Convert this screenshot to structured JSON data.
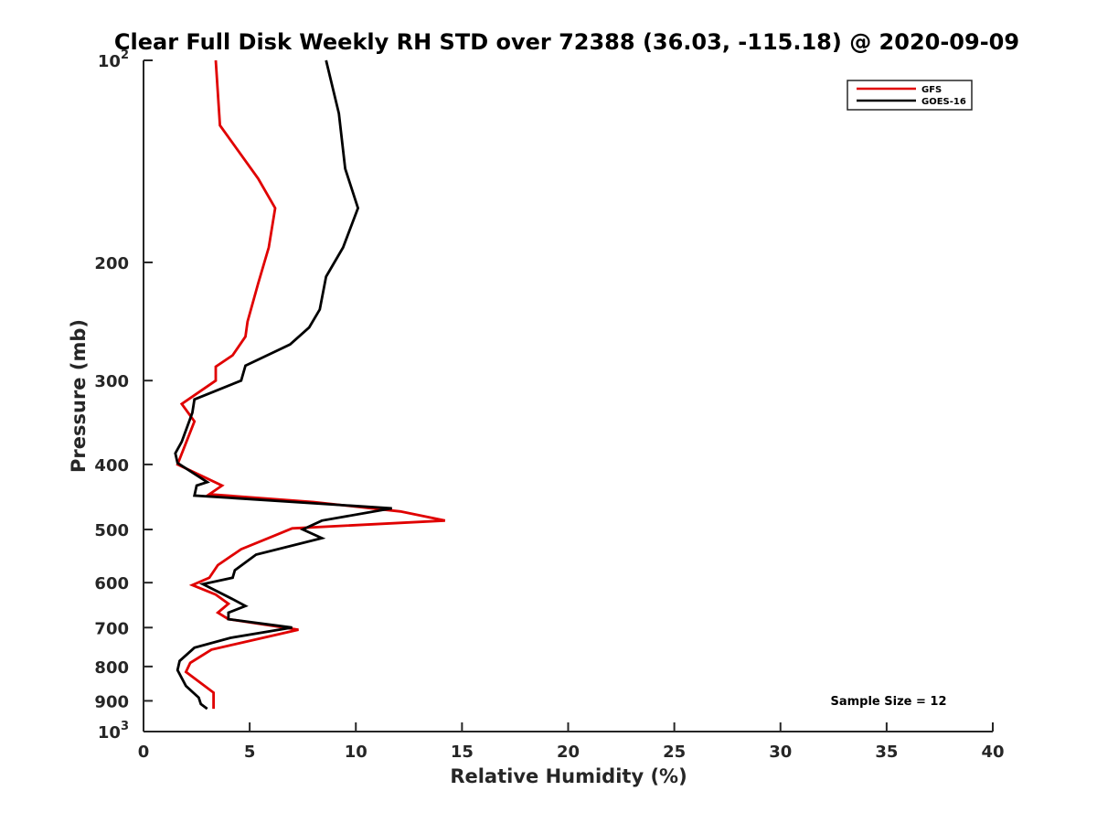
{
  "chart_data": {
    "type": "line",
    "title": "Clear Full Disk Weekly RH STD over 72388 (36.03, -115.18) @ 2020-09-09",
    "xlabel": "Relative Humidity (%)",
    "ylabel": "Pressure (mb)",
    "xlim": [
      0,
      40
    ],
    "ylim": [
      100,
      1000
    ],
    "y_scale": "log",
    "y_reversed": true,
    "x_ticks": [
      "0",
      "5",
      "10",
      "15",
      "20",
      "25",
      "30",
      "35",
      "40"
    ],
    "y_ticks": [
      {
        "value": 100,
        "base": "10",
        "exp": "2"
      },
      {
        "value": 200,
        "label": "200"
      },
      {
        "value": 300,
        "label": "300"
      },
      {
        "value": 400,
        "label": "400"
      },
      {
        "value": 500,
        "label": "500"
      },
      {
        "value": 600,
        "label": "600"
      },
      {
        "value": 700,
        "label": "700"
      },
      {
        "value": 800,
        "label": "800"
      },
      {
        "value": 900,
        "label": "900"
      },
      {
        "value": 1000,
        "base": "10",
        "exp": "3"
      }
    ],
    "grid": false,
    "legend_position": "top-right",
    "annotation": "Sample Size = 12",
    "series": [
      {
        "name": "GFS",
        "color": "#e00000",
        "points": [
          [
            3.4,
            100
          ],
          [
            3.6,
            125
          ],
          [
            5.4,
            150
          ],
          [
            6.2,
            166
          ],
          [
            5.9,
            190
          ],
          [
            5.4,
            215
          ],
          [
            4.9,
            245
          ],
          [
            4.8,
            258
          ],
          [
            4.2,
            275
          ],
          [
            3.4,
            286
          ],
          [
            3.4,
            300
          ],
          [
            1.8,
            325
          ],
          [
            2.4,
            345
          ],
          [
            1.6,
            400
          ],
          [
            3.7,
            430
          ],
          [
            3.1,
            443
          ],
          [
            8.0,
            455
          ],
          [
            12.1,
            470
          ],
          [
            14.2,
            485
          ],
          [
            7.0,
            498
          ],
          [
            6.2,
            510
          ],
          [
            4.6,
            535
          ],
          [
            3.5,
            565
          ],
          [
            3.1,
            590
          ],
          [
            2.3,
            605
          ],
          [
            3.4,
            625
          ],
          [
            4.0,
            645
          ],
          [
            3.5,
            665
          ],
          [
            4.0,
            680
          ],
          [
            7.3,
            705
          ],
          [
            3.2,
            755
          ],
          [
            2.2,
            790
          ],
          [
            2.0,
            815
          ],
          [
            3.3,
            875
          ],
          [
            3.3,
            900
          ],
          [
            3.3,
            925
          ]
        ]
      },
      {
        "name": "GOES-16",
        "color": "#000000",
        "points": [
          [
            8.6,
            100
          ],
          [
            9.2,
            120
          ],
          [
            9.5,
            145
          ],
          [
            10.1,
            166
          ],
          [
            9.4,
            190
          ],
          [
            8.6,
            210
          ],
          [
            8.3,
            235
          ],
          [
            7.8,
            250
          ],
          [
            6.9,
            265
          ],
          [
            4.8,
            285
          ],
          [
            4.6,
            300
          ],
          [
            2.4,
            320
          ],
          [
            2.3,
            335
          ],
          [
            1.8,
            370
          ],
          [
            1.5,
            385
          ],
          [
            1.6,
            398
          ],
          [
            3.0,
            425
          ],
          [
            2.5,
            430
          ],
          [
            2.4,
            445
          ],
          [
            11.7,
            465
          ],
          [
            8.4,
            485
          ],
          [
            7.5,
            500
          ],
          [
            8.4,
            515
          ],
          [
            5.3,
            545
          ],
          [
            4.3,
            575
          ],
          [
            4.2,
            590
          ],
          [
            2.8,
            603
          ],
          [
            4.2,
            635
          ],
          [
            4.8,
            650
          ],
          [
            4.0,
            665
          ],
          [
            4.0,
            680
          ],
          [
            7.0,
            700
          ],
          [
            4.1,
            725
          ],
          [
            2.4,
            750
          ],
          [
            1.7,
            785
          ],
          [
            1.6,
            810
          ],
          [
            2.0,
            855
          ],
          [
            2.6,
            890
          ],
          [
            2.7,
            910
          ],
          [
            3.0,
            925
          ]
        ]
      }
    ]
  }
}
